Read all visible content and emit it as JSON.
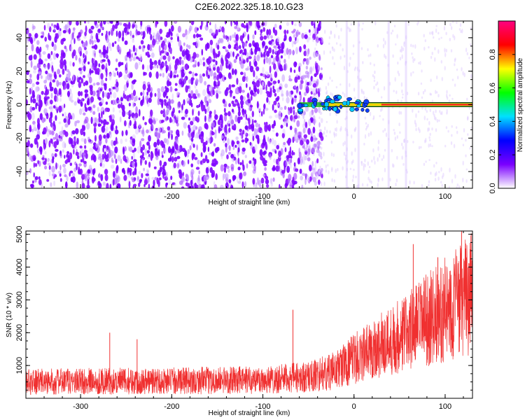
{
  "figure_title": "C2E6.2022.325.18.10.G23",
  "chart_data": [
    {
      "type": "heatmap",
      "xlabel": "Height of straight line (km)",
      "ylabel": "Frequency (Hz)",
      "xlim": [
        -360,
        130
      ],
      "ylim": [
        -50,
        50
      ],
      "x_ticks": [
        -300,
        -200,
        -100,
        0,
        100
      ],
      "y_ticks": [
        -40,
        -20,
        0,
        20,
        40
      ],
      "colorbar": {
        "label": "Normalized spectral amplitude",
        "range": [
          0,
          1
        ],
        "ticks": [
          0.0,
          0.2,
          0.4,
          0.6,
          0.8
        ],
        "tick_labels": [
          "0.0",
          "0.2",
          "0.4",
          "0.6",
          "0.8"
        ],
        "colors": [
          "#ffffff",
          "#7a00ff",
          "#0000ff",
          "#00e0ff",
          "#00ff00",
          "#ffff00",
          "#ff0000",
          "#ff0080"
        ]
      },
      "signal_line": {
        "frequency_hz": 0,
        "x_start_km": -60,
        "x_end_km": 130
      },
      "noise_cutoff_km": -45
    },
    {
      "type": "line",
      "xlabel": "Height of straight line (km)",
      "ylabel": "SNR (10 * v/v)",
      "xlim": [
        -360,
        130
      ],
      "ylim": [
        0,
        5100
      ],
      "x_ticks": [
        -300,
        -200,
        -100,
        0,
        100
      ],
      "y_ticks": [
        1000,
        2000,
        3000,
        4000,
        5000
      ],
      "line_color": "#f03030",
      "approx_profile": {
        "x": [
          -360,
          -300,
          -200,
          -100,
          -50,
          -20,
          0,
          50,
          100,
          130
        ],
        "y": [
          500,
          520,
          530,
          560,
          650,
          850,
          1200,
          1900,
          2700,
          3200
        ]
      },
      "spikes": [
        {
          "x": -268,
          "y": 2000
        },
        {
          "x": -238,
          "y": 1800
        },
        {
          "x": -67,
          "y": 2700
        },
        {
          "x": 65,
          "y": 4700
        },
        {
          "x": 92,
          "y": 4300
        },
        {
          "x": 118,
          "y": 5100
        }
      ]
    }
  ]
}
